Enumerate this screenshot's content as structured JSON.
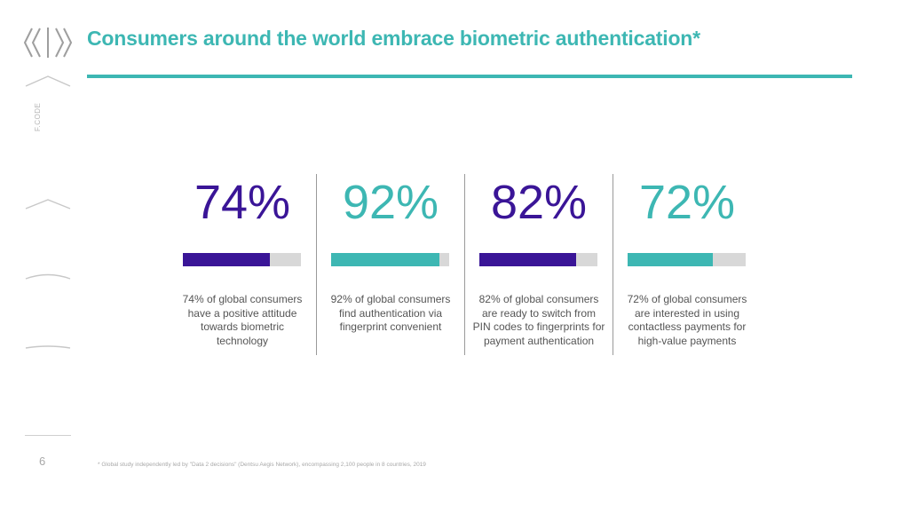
{
  "header": {
    "title": "Consumers around the world embrace biometric authentication*"
  },
  "rail": {
    "code_label": "F.CODE",
    "page_number": "6"
  },
  "colors": {
    "teal": "#3db7b3",
    "purple": "#3a1597",
    "bar_track": "#d8d8d8"
  },
  "stats": [
    {
      "value": "74%",
      "percent": 74,
      "color": "#3a1597",
      "description": "74% of global consumers have a positive attitude towards biometric technology"
    },
    {
      "value": "92%",
      "percent": 92,
      "color": "#3db7b3",
      "description": "92% of global consumers find authentication via fingerprint convenient"
    },
    {
      "value": "82%",
      "percent": 82,
      "color": "#3a1597",
      "description": "82% of global consumers are ready to switch from PIN codes to fingerprints for payment authentication"
    },
    {
      "value": "72%",
      "percent": 72,
      "color": "#3db7b3",
      "description": "72% of global consumers are interested in using contactless payments for high-value payments"
    }
  ],
  "footnote": "* Global study independently led by \"Data 2 decisions\" (Dentsu Aegis Network), encompassing 2,100 people in 8 countries, 2019"
}
